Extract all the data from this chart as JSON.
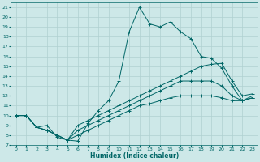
{
  "xlabel": "Humidex (Indice chaleur)",
  "bg_color": "#cde8e8",
  "grid_color": "#b0d0d0",
  "line_color": "#006666",
  "xlim": [
    -0.5,
    23.5
  ],
  "ylim": [
    7,
    21.5
  ],
  "xticks": [
    0,
    1,
    2,
    3,
    4,
    5,
    6,
    7,
    8,
    9,
    10,
    11,
    12,
    13,
    14,
    15,
    16,
    17,
    18,
    19,
    20,
    21,
    22,
    23
  ],
  "yticks": [
    7,
    8,
    9,
    10,
    11,
    12,
    13,
    14,
    15,
    16,
    17,
    18,
    19,
    20,
    21
  ],
  "line1_x": [
    0,
    1,
    2,
    3,
    4,
    5,
    6,
    7,
    8,
    9,
    10,
    11,
    12,
    13,
    14,
    15,
    16,
    17,
    18,
    19,
    20,
    21,
    22,
    23
  ],
  "line1_y": [
    10.0,
    10.0,
    8.8,
    9.0,
    7.8,
    7.5,
    7.4,
    9.2,
    10.5,
    11.5,
    13.5,
    18.5,
    21.0,
    19.3,
    19.0,
    19.5,
    18.5,
    17.8,
    16.0,
    15.8,
    14.8,
    13.0,
    11.5,
    12.0
  ],
  "line2_x": [
    0,
    1,
    2,
    3,
    4,
    5,
    6,
    7,
    8,
    9,
    10,
    11,
    12,
    13,
    14,
    15,
    16,
    17,
    18,
    19,
    20,
    21,
    22,
    23
  ],
  "line2_y": [
    10.0,
    10.0,
    8.8,
    8.5,
    8.0,
    7.5,
    9.0,
    9.5,
    10.0,
    10.5,
    11.0,
    11.5,
    12.0,
    12.5,
    13.0,
    13.5,
    14.0,
    14.5,
    15.0,
    15.2,
    15.3,
    13.5,
    12.0,
    12.2
  ],
  "line3_x": [
    0,
    1,
    2,
    3,
    4,
    5,
    6,
    7,
    8,
    9,
    10,
    11,
    12,
    13,
    14,
    15,
    16,
    17,
    18,
    19,
    20,
    21,
    22,
    23
  ],
  "line3_y": [
    10.0,
    10.0,
    8.8,
    8.5,
    8.0,
    7.5,
    8.5,
    9.0,
    9.5,
    10.0,
    10.5,
    11.0,
    11.5,
    12.0,
    12.5,
    13.0,
    13.5,
    13.5,
    13.5,
    13.5,
    13.0,
    12.0,
    11.5,
    11.8
  ],
  "line4_x": [
    0,
    1,
    2,
    3,
    4,
    5,
    6,
    7,
    8,
    9,
    10,
    11,
    12,
    13,
    14,
    15,
    16,
    17,
    18,
    19,
    20,
    21,
    22,
    23
  ],
  "line4_y": [
    10.0,
    10.0,
    8.8,
    8.5,
    8.0,
    7.5,
    8.0,
    8.5,
    9.0,
    9.5,
    10.0,
    10.5,
    11.0,
    11.2,
    11.5,
    11.8,
    12.0,
    12.0,
    12.0,
    12.0,
    11.8,
    11.5,
    11.5,
    11.8
  ]
}
